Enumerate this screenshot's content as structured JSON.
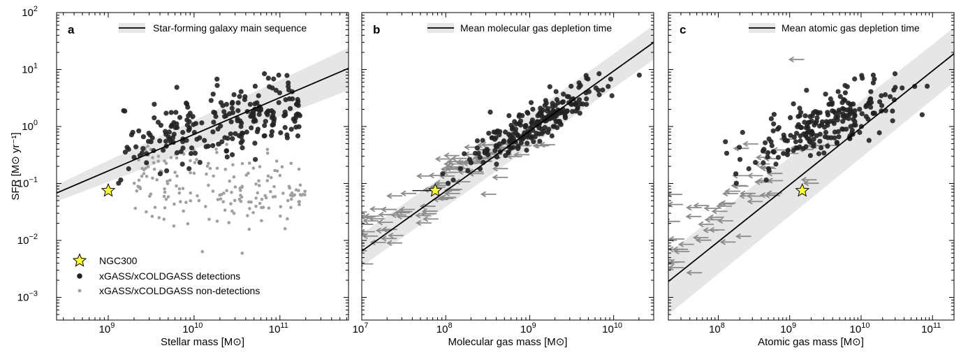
{
  "chart_data": [
    {
      "type": "scatter",
      "panel_label": "a",
      "xlabel": "Stellar mass [M⊙]",
      "ylabel": "SFR [M⊙ yr⁻¹]",
      "xscale": "log",
      "yscale": "log",
      "xlim": [
        250000000.0,
        630000000000.0
      ],
      "ylim": [
        0.0004,
        100
      ],
      "xticks": [
        {
          "value": 1000000000.0,
          "exp": "9"
        },
        {
          "value": 10000000000.0,
          "exp": "10"
        },
        {
          "value": 100000000000.0,
          "exp": "11"
        }
      ],
      "yticks": [
        {
          "value": 0.001,
          "exp": "−3"
        },
        {
          "value": 0.01,
          "exp": "−2"
        },
        {
          "value": 0.1,
          "exp": "−1"
        },
        {
          "value": 1,
          "exp": "0"
        },
        {
          "value": 10,
          "exp": "1"
        },
        {
          "value": 100,
          "exp": "2"
        }
      ],
      "reference_line": {
        "label": "Star-forming galaxy main sequence",
        "x": [
          250000000.0,
          630000000000.0
        ],
        "y": [
          0.068,
          10.5
        ],
        "band_lower": [
          0.048,
          4.3
        ],
        "band_upper": [
          0.095,
          24
        ]
      },
      "legend_position": "top-right",
      "ngc300": {
        "label": "NGC300",
        "x": 1000000000.0,
        "y": 0.075
      },
      "detections": {
        "label": "xGASS/xCOLDGASS detections",
        "x": [],
        "y": []
      },
      "non_detections": {
        "label": "xGASS/xCOLDGASS non-detections",
        "x": [],
        "y": []
      }
    },
    {
      "type": "scatter",
      "panel_label": "b",
      "xlabel": "Molecular gas mass [M⊙]",
      "ylabel": "",
      "xscale": "log",
      "yscale": "log",
      "xlim": [
        10000000.0,
        30000000000.0
      ],
      "ylim": [
        0.0004,
        100
      ],
      "xticks": [
        {
          "value": 10000000.0,
          "exp": "7"
        },
        {
          "value": 100000000.0,
          "exp": "8"
        },
        {
          "value": 1000000000.0,
          "exp": "9"
        },
        {
          "value": 10000000000.0,
          "exp": "10"
        }
      ],
      "reference_line": {
        "label": "Mean molecular gas depletion time",
        "x": [
          10000000.0,
          30000000000.0
        ],
        "y": [
          0.0065,
          30
        ],
        "band_lower": [
          0.0035,
          15
        ],
        "band_upper": [
          0.013,
          60
        ]
      },
      "legend_position": "top-right",
      "ngc300": {
        "x": 75000000.0,
        "y": 0.075,
        "xerr_low": 40000000.0
      },
      "detections": {
        "x": [],
        "y": []
      },
      "upper_limits": {
        "x": [],
        "y": []
      }
    },
    {
      "type": "scatter",
      "panel_label": "c",
      "xlabel": "Atomic gas mass [M⊙]",
      "ylabel": "",
      "xscale": "log",
      "yscale": "log",
      "xlim": [
        20000000.0,
        200000000000.0
      ],
      "ylim": [
        0.0004,
        100
      ],
      "xticks": [
        {
          "value": 100000000.0,
          "exp": "8"
        },
        {
          "value": 1000000000.0,
          "exp": "9"
        },
        {
          "value": 10000000000.0,
          "exp": "10"
        },
        {
          "value": 100000000000.0,
          "exp": "11"
        }
      ],
      "reference_line": {
        "label": "Mean atomic gas depletion time",
        "x": [
          20000000.0,
          200000000000.0
        ],
        "y": [
          0.0019,
          19
        ],
        "band_lower": [
          0.0005,
          6
        ],
        "band_upper": [
          0.006,
          55
        ]
      },
      "legend_position": "top-right",
      "ngc300": {
        "x": 1500000000.0,
        "y": 0.075
      },
      "detections": {
        "x": [],
        "y": []
      },
      "upper_limits": {
        "x": [],
        "y": []
      }
    }
  ],
  "colors": {
    "detection": "#222222",
    "non_detection": "#a0a0a0",
    "upper_limit": "#8c8c8c",
    "band": "#e6e6e6",
    "ngc300_fill": "#ffff33",
    "line": "#000000"
  }
}
